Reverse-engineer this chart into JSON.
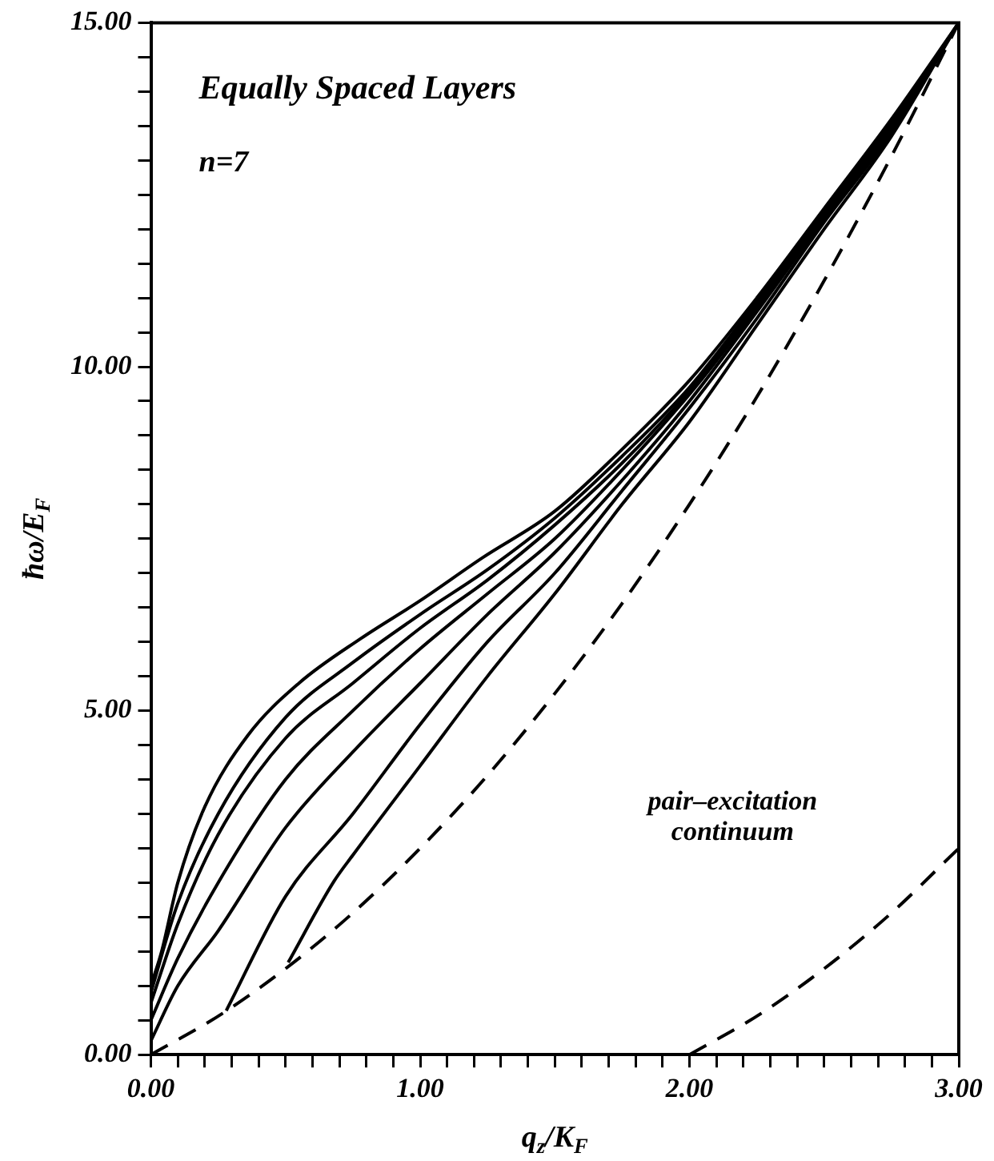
{
  "chart_data": {
    "type": "line",
    "title": "Equally Spaced Layers",
    "xlabel": "q$_{z}$/K$_{F}$",
    "ylabel": "ħω/E$_{F}$",
    "annotations": [
      "n=7",
      "pair–excitation continuum"
    ],
    "marker": "none",
    "legend": false,
    "xlim": [
      0,
      3
    ],
    "ylim": [
      0,
      15
    ],
    "xticks": [
      {
        "value": 0,
        "label": "0.00"
      },
      {
        "value": 0.1,
        "label": null
      },
      {
        "value": 0.2,
        "label": null
      },
      {
        "value": 0.3,
        "label": null
      },
      {
        "value": 0.4,
        "label": null
      },
      {
        "value": 0.5,
        "label": null
      },
      {
        "value": 0.6,
        "label": null
      },
      {
        "value": 0.7,
        "label": null
      },
      {
        "value": 0.8,
        "label": null
      },
      {
        "value": 0.9,
        "label": null
      },
      {
        "value": 1,
        "label": "1.00"
      },
      {
        "value": 1.1,
        "label": null
      },
      {
        "value": 1.2,
        "label": null
      },
      {
        "value": 1.3,
        "label": null
      },
      {
        "value": 1.4,
        "label": null
      },
      {
        "value": 1.5,
        "label": null
      },
      {
        "value": 1.6,
        "label": null
      },
      {
        "value": 1.7,
        "label": null
      },
      {
        "value": 1.8,
        "label": null
      },
      {
        "value": 1.9,
        "label": null
      },
      {
        "value": 2,
        "label": "2.00"
      },
      {
        "value": 2.1,
        "label": null
      },
      {
        "value": 2.2,
        "label": null
      },
      {
        "value": 2.3,
        "label": null
      },
      {
        "value": 2.4,
        "label": null
      },
      {
        "value": 2.5,
        "label": null
      },
      {
        "value": 2.6,
        "label": null
      },
      {
        "value": 2.7,
        "label": null
      },
      {
        "value": 2.8,
        "label": null
      },
      {
        "value": 2.9,
        "label": null
      },
      {
        "value": 3,
        "label": "3.00"
      }
    ],
    "yticks": [
      {
        "value": 0,
        "label": "0.00"
      },
      {
        "value": 0.5,
        "label": null
      },
      {
        "value": 1,
        "label": null
      },
      {
        "value": 1.5,
        "label": null
      },
      {
        "value": 2,
        "label": null
      },
      {
        "value": 2.5,
        "label": null
      },
      {
        "value": 3,
        "label": null
      },
      {
        "value": 3.5,
        "label": null
      },
      {
        "value": 4,
        "label": null
      },
      {
        "value": 4.5,
        "label": null
      },
      {
        "value": 5,
        "label": "5.00"
      },
      {
        "value": 5.5,
        "label": null
      },
      {
        "value": 6,
        "label": null
      },
      {
        "value": 6.5,
        "label": null
      },
      {
        "value": 7,
        "label": null
      },
      {
        "value": 7.5,
        "label": null
      },
      {
        "value": 8,
        "label": null
      },
      {
        "value": 8.5,
        "label": null
      },
      {
        "value": 9,
        "label": null
      },
      {
        "value": 9.5,
        "label": null
      },
      {
        "value": 10,
        "label": "10.00"
      },
      {
        "value": 10.5,
        "label": null
      },
      {
        "value": 11,
        "label": null
      },
      {
        "value": 11.5,
        "label": null
      },
      {
        "value": 12,
        "label": null
      },
      {
        "value": 12.5,
        "label": null
      },
      {
        "value": 13,
        "label": null
      },
      {
        "value": 13.5,
        "label": null
      },
      {
        "value": 14,
        "label": null
      },
      {
        "value": 14.5,
        "label": null
      },
      {
        "value": 15,
        "label": "15.00"
      }
    ],
    "series": [
      {
        "color": "#000000",
        "line_style": "dashed",
        "x": [
          0,
          0.25,
          0.5,
          0.75,
          1,
          1.25,
          1.5,
          1.75,
          2,
          2.25,
          2.5,
          2.75,
          3
        ],
        "values": [
          0,
          0.56,
          1.25,
          2.06,
          3,
          4.06,
          5.25,
          6.56,
          8,
          9.56,
          11.25,
          13.06,
          15
        ]
      },
      {
        "color": "#000000",
        "line_style": "dashed",
        "x": [
          2,
          2.25,
          2.5,
          2.75,
          3
        ],
        "values": [
          0,
          0.56,
          1.25,
          2.06,
          3
        ]
      },
      {
        "color": "#000000",
        "x": [
          0,
          0.04,
          0.1,
          0.2,
          0.36,
          0.55,
          0.78,
          1,
          1.23,
          1.5,
          1.75,
          2,
          2.25,
          2.5,
          2.75,
          3
        ],
        "values": [
          1,
          1.5,
          2.5,
          3.6,
          4.64,
          5.4,
          6.05,
          6.6,
          7.22,
          7.9,
          8.8,
          9.8,
          11,
          12.3,
          13.6,
          15
        ]
      },
      {
        "color": "#000000",
        "x": [
          0,
          0.1,
          0.25,
          0.5,
          0.75,
          1,
          1.25,
          1.5,
          1.75,
          2,
          2.25,
          2.5,
          2.75,
          3
        ],
        "values": [
          0.9,
          2.2,
          3.5,
          4.9,
          5.7,
          6.4,
          7.05,
          7.8,
          8.7,
          9.7,
          10.95,
          12.25,
          13.55,
          15
        ]
      },
      {
        "color": "#000000",
        "x": [
          0,
          0.1,
          0.25,
          0.5,
          0.75,
          1,
          1.25,
          1.5,
          1.75,
          2,
          2.25,
          2.5,
          2.75,
          3
        ],
        "values": [
          0.75,
          1.9,
          3.2,
          4.6,
          5.4,
          6.2,
          6.9,
          7.7,
          8.6,
          9.65,
          10.9,
          12.2,
          13.5,
          15
        ]
      },
      {
        "color": "#000000",
        "x": [
          0,
          0.1,
          0.25,
          0.5,
          0.75,
          1,
          1.25,
          1.5,
          1.75,
          2,
          2.25,
          2.5,
          2.75,
          3
        ],
        "values": [
          0.5,
          1.4,
          2.5,
          4,
          5,
          5.9,
          6.7,
          7.5,
          8.5,
          9.6,
          10.85,
          12.2,
          13.5,
          15
        ]
      },
      {
        "color": "#000000",
        "x": [
          0,
          0.1,
          0.25,
          0.5,
          0.75,
          1,
          1.25,
          1.5,
          1.75,
          2,
          2.25,
          2.5,
          2.75,
          3
        ],
        "values": [
          0.2,
          1,
          1.8,
          3.3,
          4.4,
          5.4,
          6.4,
          7.3,
          8.35,
          9.5,
          10.8,
          12.15,
          13.45,
          15
        ]
      },
      {
        "color": "#000000",
        "x": [
          0.28,
          0.5,
          0.75,
          1,
          1.25,
          1.5,
          1.75,
          2,
          2.25,
          2.5,
          2.75,
          3
        ],
        "values": [
          0.64,
          2.3,
          3.5,
          4.8,
          6,
          7,
          8.2,
          9.4,
          10.7,
          12.1,
          13.4,
          15
        ]
      },
      {
        "color": "#000000",
        "x": [
          0.51,
          0.68,
          0.75,
          1,
          1.25,
          1.5,
          1.75,
          2,
          2.25,
          2.5,
          2.75,
          3
        ],
        "values": [
          1.34,
          2.52,
          2.9,
          4.2,
          5.5,
          6.7,
          8,
          9.2,
          10.6,
          12,
          13.35,
          15
        ]
      }
    ]
  }
}
